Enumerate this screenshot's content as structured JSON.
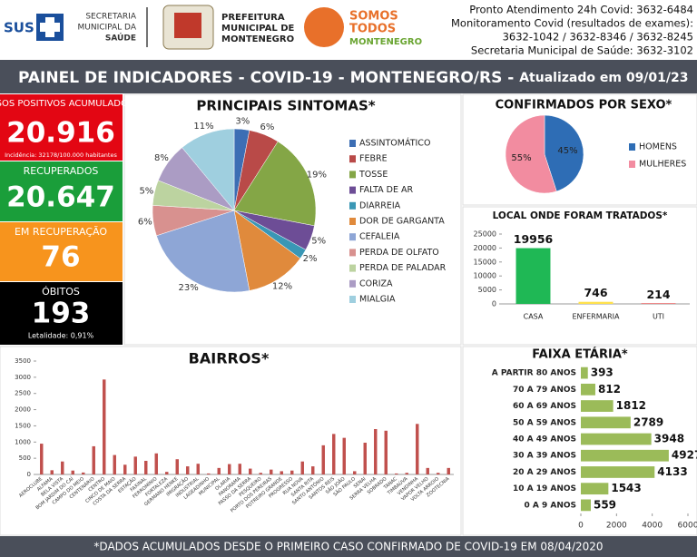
{
  "header": {
    "sus": "SUS",
    "secretaria": [
      "SECRETARIA",
      "MUNICIPAL DA",
      "SAÚDE"
    ],
    "prefeitura": [
      "PREFEITURA",
      "MUNICIPAL DE",
      "MONTENEGRO"
    ],
    "somos": [
      "SOMOS",
      "TODOS",
      "MONTENEGRO"
    ],
    "contacts": [
      "Pronto Atendimento 24h Covid: 3632-6484",
      "Monitoramento Covid (resultados de exames):",
      "3632-1042 / 3632-8346 / 3632-8245",
      "Secretaria Municipal de Saúde: 3632-3102"
    ]
  },
  "title": "PAINEL DE INDICADORES - COVID-19 - MONTENEGRO/RS -",
  "updated": "Atualizado em 09/01/23",
  "kpis": [
    {
      "label": "CASOS POSITIVOS ACUMULADOS*",
      "value": "20.916",
      "note": "Incidência: 32178/100.000 habitantes"
    },
    {
      "label": "RECUPERADOS",
      "value": "20.647"
    },
    {
      "label": "EM RECUPERAÇÃO",
      "value": "76"
    },
    {
      "label": "ÓBITOS",
      "value": "193",
      "note": "Letalidade: 0,91%"
    }
  ],
  "footer": "*DADOS ACUMULADOS DESDE O PRIMEIRO CASO CONFIRMADO DE COVID-19 EM 08/04/2020",
  "chart_data": [
    {
      "type": "pie",
      "title": "PRINCIPAIS SINTOMAS*",
      "categories": [
        "ASSINTOMÁTICO",
        "FEBRE",
        "TOSSE",
        "FALTA DE AR",
        "DIARREIA",
        "DOR DE GARGANTA",
        "CEFALEIA",
        "PERDA DE OLFATO",
        "PERDA DE PALADAR",
        "CORIZA",
        "MIALGIA"
      ],
      "values": [
        3,
        6,
        19,
        5,
        2,
        12,
        23,
        6,
        5,
        8,
        11
      ],
      "value_labels": [
        "3%",
        "6%",
        "19%",
        "5%",
        "2%",
        "12%",
        "23%",
        "6%",
        "5%",
        "8%",
        "11%"
      ],
      "colors": [
        "#3c6eb4",
        "#b94a48",
        "#84a646",
        "#6d4d96",
        "#3a97b5",
        "#e08a3c",
        "#8ea6d6",
        "#d8918f",
        "#bcd3a0",
        "#ab9cc4",
        "#9fcfdf"
      ]
    },
    {
      "type": "pie",
      "title": "CONFIRMADOS POR SEXO*",
      "categories": [
        "HOMENS",
        "MULHERES"
      ],
      "values": [
        45,
        55
      ],
      "value_labels": [
        "45%",
        "55%"
      ],
      "colors": [
        "#2e6db5",
        "#f28ca0"
      ]
    },
    {
      "type": "bar",
      "title": "LOCAL ONDE FORAM TRATADOS*",
      "categories": [
        "CASA",
        "ENFERMARIA",
        "UTI"
      ],
      "values": [
        19956,
        746,
        214
      ],
      "colors": [
        "#1fb855",
        "#ffe14d",
        "#e64a4a"
      ],
      "ylim": [
        0,
        25000
      ],
      "yticks": [
        0,
        5000,
        10000,
        15000,
        20000,
        25000
      ]
    },
    {
      "type": "bar",
      "title": "BAIRROS*",
      "categories": [
        "AEROCLUBE",
        "ALFAMA",
        "BELA VISTA",
        "BOM JARDIM DO CAÍ",
        "CAMPO DO MEIO",
        "CENTENÁRIO",
        "CENTRO",
        "CINCO DE MAIO",
        "COSTA DA SERRA",
        "ESTAÇÃO",
        "FAXINAL",
        "FERROMÍNIO",
        "FORTALEZA",
        "GERMANO HENKE",
        "IMIGRAÇÃO",
        "INDUSTRIAL",
        "LAGEADINHO",
        "MUNICIPAL",
        "OLARIA",
        "PANORAMA",
        "PASSO DA SERRA",
        "PESQUEIRO",
        "PORTO DOS PEREIRAS",
        "POTREIRO GRANDE",
        "PROGRESSO",
        "RUA NOVA",
        "SANTA RITA",
        "SANTO ANTÔNIO",
        "SANTOS REIS",
        "SÃO JOÃO",
        "SÃO PAULO",
        "SENAI",
        "SERRA VELHA",
        "SOBRADO",
        "TANAC",
        "TIMBAÚVA",
        "VENDINHA",
        "VAPOR VELHO",
        "VOLTA ARROIO",
        "ZOOTECNIA"
      ],
      "values": [
        950,
        130,
        400,
        120,
        60,
        870,
        2930,
        600,
        300,
        550,
        420,
        650,
        80,
        470,
        250,
        330,
        30,
        200,
        320,
        330,
        180,
        50,
        150,
        100,
        120,
        400,
        250,
        900,
        1250,
        1130,
        100,
        980,
        1400,
        1350,
        30,
        50,
        1560,
        200,
        50,
        200
      ],
      "color": "#c0504d",
      "ylim": [
        0,
        3500
      ],
      "yticks": [
        0,
        500,
        1000,
        1500,
        2000,
        2500,
        3000,
        3500
      ]
    },
    {
      "type": "hbar",
      "title": "FAIXA ETÁRIA*",
      "categories": [
        "A PARTIR 80 ANOS",
        "70 A 79 ANOS",
        "60 A 69 ANOS",
        "50 A 59 ANOS",
        "40 A 49 ANOS",
        "30 A 39 ANOS",
        "20 A 29 ANOS",
        "10 A 19 ANOS",
        "0 A 9 ANOS"
      ],
      "values": [
        393,
        812,
        1812,
        2789,
        3948,
        4927,
        4133,
        1543,
        559
      ],
      "color": "#9bbb59",
      "xlim": [
        0,
        6000
      ],
      "xticks": [
        0,
        2000,
        4000,
        6000
      ]
    }
  ]
}
